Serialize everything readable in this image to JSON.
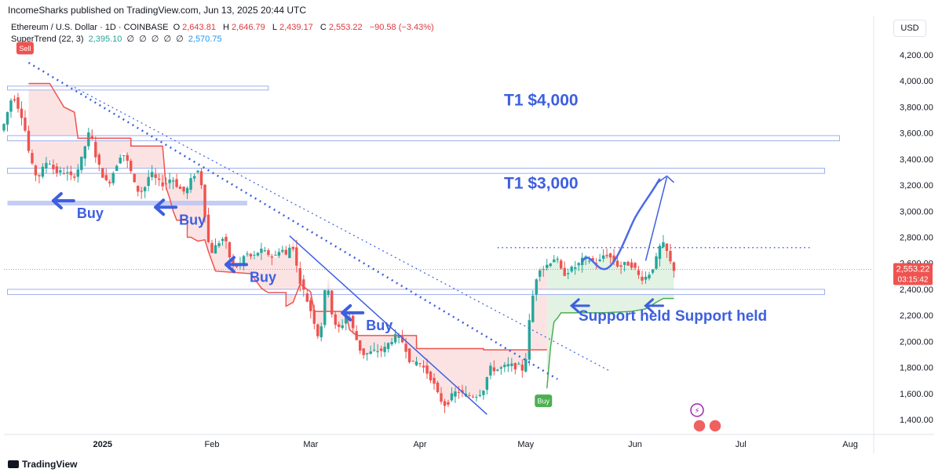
{
  "header": {
    "publisher": "IncomeSharks published on TradingView.com, Jun 13, 2025 20:44 UTC",
    "symbol": "Ethereum / U.S. Dollar · 1D · COINBASE",
    "ohlc": {
      "o_label": "O",
      "o": "2,643.81",
      "h_label": "H",
      "h": "2,646.79",
      "l_label": "L",
      "l": "2,439.17",
      "c_label": "C",
      "c": "2,553.22",
      "change": "−90.58 (−3.43%)"
    },
    "indicator": "SuperTrend (22, 3)",
    "indicator_values": [
      "2,395.10",
      "∅",
      "∅",
      "∅",
      "∅",
      "∅",
      "2,570.75"
    ],
    "currency": "USD"
  },
  "footer": {
    "logo": "TradingView"
  },
  "chart_data": {
    "type": "candlestick",
    "y_ticks": [
      "4,200.00",
      "4,000.00",
      "3,800.00",
      "3,600.00",
      "3,400.00",
      "3,200.00",
      "3,000.00",
      "2,800.00",
      "2,600.00",
      "2,400.00",
      "2,200.00",
      "2,000.00",
      "1,800.00",
      "1,600.00",
      "1,400.00"
    ],
    "x_ticks": [
      {
        "label": "2025",
        "day": 28,
        "bold": true
      },
      {
        "label": "Feb",
        "day": 59
      },
      {
        "label": "Mar",
        "day": 87
      },
      {
        "label": "Apr",
        "day": 118
      },
      {
        "label": "May",
        "day": 148
      },
      {
        "label": "Jun",
        "day": 179
      },
      {
        "label": "Jul",
        "day": 209
      },
      {
        "label": "Aug",
        "day": 240
      }
    ],
    "ylim": [
      1310,
      4290
    ],
    "xlim": [
      0,
      246
    ],
    "last_price": "2,553.22",
    "countdown": "03:15:42",
    "last_value": 2553.22,
    "colors": {
      "up": "#26a69a",
      "down": "#ef5350",
      "supertrend_down": "#ef5350",
      "supertrend_up": "#4caf50",
      "annotation": "#3d5fe0",
      "zone": "#b8c4f5"
    },
    "price_path": [
      [
        0,
        3620
      ],
      [
        3,
        3900
      ],
      [
        6,
        3700
      ],
      [
        8,
        3380
      ],
      [
        10,
        3250
      ],
      [
        13,
        3400
      ],
      [
        15,
        3300
      ],
      [
        18,
        3300
      ],
      [
        20,
        3250
      ],
      [
        22,
        3350
      ],
      [
        24,
        3550
      ],
      [
        25,
        3630
      ],
      [
        26,
        3470
      ],
      [
        28,
        3300
      ],
      [
        30,
        3200
      ],
      [
        32,
        3330
      ],
      [
        34,
        3460
      ],
      [
        36,
        3350
      ],
      [
        38,
        3160
      ],
      [
        40,
        3150
      ],
      [
        42,
        3300
      ],
      [
        44,
        3230
      ],
      [
        46,
        3200
      ],
      [
        48,
        3260
      ],
      [
        50,
        3180
      ],
      [
        52,
        3140
      ],
      [
        54,
        3270
      ],
      [
        56,
        3320
      ],
      [
        57,
        3100
      ],
      [
        58,
        2850
      ],
      [
        59,
        2670
      ],
      [
        61,
        2750
      ],
      [
        63,
        2800
      ],
      [
        65,
        2600
      ],
      [
        67,
        2570
      ],
      [
        69,
        2680
      ],
      [
        71,
        2640
      ],
      [
        73,
        2700
      ],
      [
        75,
        2680
      ],
      [
        77,
        2640
      ],
      [
        79,
        2720
      ],
      [
        81,
        2640
      ],
      [
        82,
        2800
      ],
      [
        84,
        2500
      ],
      [
        86,
        2350
      ],
      [
        88,
        2200
      ],
      [
        90,
        2000
      ],
      [
        92,
        2500
      ],
      [
        94,
        2120
      ],
      [
        96,
        2100
      ],
      [
        98,
        2230
      ],
      [
        100,
        2050
      ],
      [
        102,
        1900
      ],
      [
        104,
        1910
      ],
      [
        106,
        1930
      ],
      [
        108,
        1930
      ],
      [
        110,
        2000
      ],
      [
        112,
        2050
      ],
      [
        114,
        1980
      ],
      [
        116,
        1820
      ],
      [
        118,
        1850
      ],
      [
        120,
        1780
      ],
      [
        122,
        1700
      ],
      [
        124,
        1560
      ],
      [
        126,
        1500
      ],
      [
        127,
        1570
      ],
      [
        129,
        1620
      ],
      [
        131,
        1590
      ],
      [
        133,
        1580
      ],
      [
        135,
        1590
      ],
      [
        137,
        1650
      ],
      [
        138,
        1800
      ],
      [
        140,
        1780
      ],
      [
        142,
        1800
      ],
      [
        144,
        1820
      ],
      [
        146,
        1800
      ],
      [
        147,
        1820
      ],
      [
        148,
        1750
      ],
      [
        149,
        2000
      ],
      [
        150,
        2300
      ],
      [
        151,
        2400
      ],
      [
        152,
        2580
      ],
      [
        153,
        2550
      ],
      [
        155,
        2600
      ],
      [
        157,
        2650
      ],
      [
        159,
        2510
      ],
      [
        161,
        2550
      ],
      [
        163,
        2580
      ],
      [
        165,
        2640
      ],
      [
        167,
        2620
      ],
      [
        169,
        2600
      ],
      [
        171,
        2680
      ],
      [
        173,
        2630
      ],
      [
        175,
        2570
      ],
      [
        177,
        2600
      ],
      [
        179,
        2580
      ],
      [
        181,
        2480
      ],
      [
        183,
        2500
      ],
      [
        185,
        2590
      ],
      [
        187,
        2770
      ],
      [
        189,
        2660
      ],
      [
        190,
        2553
      ]
    ],
    "supertrend_down": [
      [
        7,
        3980
      ],
      [
        13,
        3980
      ],
      [
        17,
        3800
      ],
      [
        20,
        3760
      ],
      [
        21,
        3560
      ],
      [
        36,
        3560
      ],
      [
        36,
        3500
      ],
      [
        45,
        3500
      ],
      [
        46,
        3180
      ],
      [
        47,
        3100
      ],
      [
        48,
        3000
      ],
      [
        49,
        2930
      ],
      [
        52,
        2930
      ],
      [
        52,
        2800
      ],
      [
        53,
        2800
      ],
      [
        55,
        2770
      ],
      [
        57,
        2780
      ],
      [
        58,
        2690
      ],
      [
        60,
        2540
      ],
      [
        70,
        2520
      ],
      [
        73,
        2410
      ],
      [
        74,
        2390
      ],
      [
        75,
        2375
      ],
      [
        80,
        2375
      ],
      [
        80,
        2270
      ],
      [
        82,
        2300
      ],
      [
        84,
        2440
      ],
      [
        87,
        2380
      ],
      [
        88,
        2230
      ],
      [
        97,
        2230
      ],
      [
        98,
        2090
      ],
      [
        100,
        2045
      ],
      [
        117,
        2045
      ],
      [
        117,
        1945
      ],
      [
        136,
        1945
      ],
      [
        136,
        1935
      ],
      [
        154,
        1935
      ]
    ],
    "supertrend_up": [
      [
        154,
        1640
      ],
      [
        155,
        1950
      ],
      [
        156,
        2150
      ],
      [
        157,
        2180
      ],
      [
        158,
        2220
      ],
      [
        170,
        2220
      ],
      [
        178,
        2230
      ],
      [
        182,
        2250
      ],
      [
        185,
        2300
      ],
      [
        187,
        2330
      ],
      [
        190,
        2330
      ]
    ],
    "annotations": [
      {
        "id": "buy-1",
        "label": "Buy",
        "day": 14,
        "price": 3080
      },
      {
        "id": "buy-2",
        "label": "Buy",
        "day": 43,
        "price": 3030
      },
      {
        "id": "buy-3",
        "label": "Buy",
        "day": 63,
        "price": 2590
      },
      {
        "id": "buy-4",
        "label": "Buy",
        "day": 96,
        "price": 2220
      },
      {
        "id": "support-1",
        "label": "Support held",
        "day": 170,
        "price": 2220
      },
      {
        "id": "support-2",
        "label": "Support held",
        "day": 187,
        "price": 2220
      },
      {
        "id": "t1-4000",
        "label": "T1 $4,000",
        "day": 134,
        "price": 3860
      },
      {
        "id": "t1-3000",
        "label": "T1 $3,000",
        "day": 134,
        "price": 3220
      }
    ],
    "signals": [
      {
        "label": "Sell",
        "day": 6,
        "price": 4300,
        "color": "#ef5350"
      },
      {
        "label": "Buy",
        "day": 153,
        "price": 1580,
        "color": "#4caf50"
      }
    ]
  }
}
